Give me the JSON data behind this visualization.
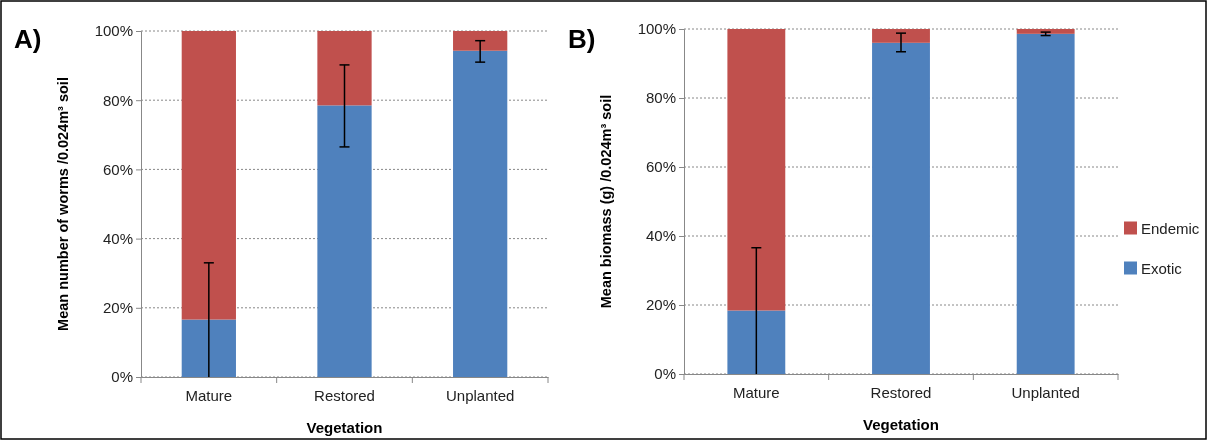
{
  "chart_data": [
    {
      "type": "bar",
      "stacked": true,
      "annotations": [
        "A)"
      ],
      "xlabel": "Vegetation",
      "ylabel": "Mean number of worms /0.024m³  soil",
      "categories": [
        "Mature",
        "Restored",
        "Unplanted"
      ],
      "series": [
        {
          "color": "#4f81bd",
          "values": [
            16.6,
            78.5,
            94.3
          ],
          "errors": [
            [
              0,
              33
            ],
            [
              66.5,
              90.2
            ],
            [
              91,
              97.2
            ]
          ]
        },
        {
          "color": "#c0504d",
          "values": [
            83.4,
            21.5,
            5.7
          ]
        }
      ],
      "ylim": [
        0,
        100
      ],
      "yticks": [
        {
          "value": 0,
          "label": "0%"
        },
        {
          "value": 20,
          "label": "20%"
        },
        {
          "value": 40,
          "label": "40%"
        },
        {
          "value": 60,
          "label": "60%"
        },
        {
          "value": 80,
          "label": "80%"
        },
        {
          "value": 100,
          "label": "100%"
        }
      ],
      "grid": "y",
      "legend": false
    },
    {
      "type": "bar",
      "stacked": true,
      "annotations": [
        "B)"
      ],
      "xlabel": "Vegetation",
      "ylabel": "Mean biomass  (g) /0.024m³  soil",
      "categories": [
        "Mature",
        "Restored",
        "Unplanted"
      ],
      "series": [
        {
          "name": "Exotic",
          "color": "#4f81bd",
          "values": [
            18.4,
            96.0,
            98.6
          ],
          "errors": [
            [
              0,
              36.6
            ],
            [
              93.4,
              98.8
            ],
            [
              98.1,
              99.1
            ]
          ]
        },
        {
          "name": "Endemic",
          "color": "#c0504d",
          "values": [
            81.6,
            4.0,
            1.4
          ]
        }
      ],
      "ylim": [
        0,
        100
      ],
      "yticks": [
        {
          "value": 0,
          "label": "0%"
        },
        {
          "value": 20,
          "label": "20%"
        },
        {
          "value": 40,
          "label": "40%"
        },
        {
          "value": 60,
          "label": "60%"
        },
        {
          "value": 80,
          "label": "80%"
        },
        {
          "value": 100,
          "label": "100%"
        }
      ],
      "grid": "y",
      "legend": "right"
    }
  ]
}
